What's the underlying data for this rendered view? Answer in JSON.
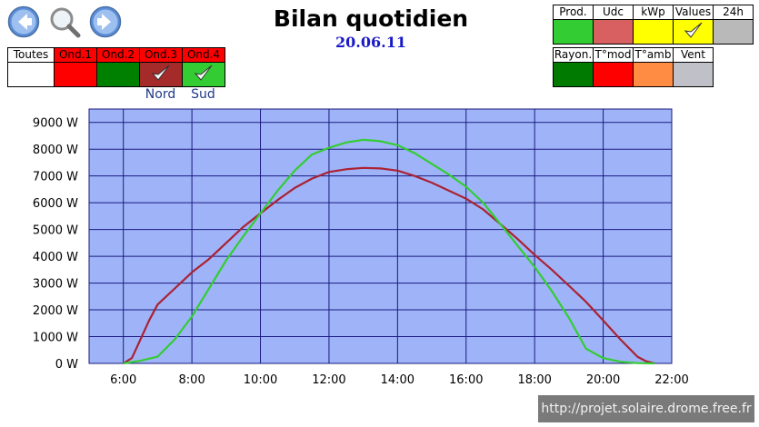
{
  "header": {
    "title": "Bilan quotidien",
    "date": "20.06.11"
  },
  "nav": {
    "icons": [
      "back-arrow-icon",
      "magnifier-icon",
      "forward-arrow-icon"
    ]
  },
  "inverters": {
    "items": [
      {
        "label": "Toutes",
        "color": "#ffffff",
        "text_color": "#000000",
        "checked": false,
        "sub": ""
      },
      {
        "label": "Ond.1",
        "color": "#ff0000",
        "text_color": "#000000",
        "checked": false,
        "sub": ""
      },
      {
        "label": "Ond.2",
        "color": "#008000",
        "text_color": "#000000",
        "checked": false,
        "sub": ""
      },
      {
        "label": "Ond.3",
        "color": "#a52a2a",
        "text_color": "#000000",
        "checked": true,
        "sub": "Nord"
      },
      {
        "label": "Ond.4",
        "color": "#33cc33",
        "text_color": "#000000",
        "checked": true,
        "sub": "Sud"
      }
    ]
  },
  "views": {
    "row1": [
      {
        "label": "Prod.",
        "color": "#33cc33",
        "checked": false
      },
      {
        "label": "Udc",
        "color": "#d96060",
        "checked": false
      },
      {
        "label": "kWp",
        "color": "#ffff00",
        "checked": false
      },
      {
        "label": "Values",
        "color": "#ffff00",
        "checked": true
      },
      {
        "label": "24h",
        "color": "#b9b9b9",
        "checked": false
      }
    ],
    "row2": [
      {
        "label": "Rayon.",
        "color": "#007a00",
        "checked": false
      },
      {
        "label": "T°mod",
        "color": "#ff0000",
        "checked": false
      },
      {
        "label": "T°amb",
        "color": "#ff8c42",
        "checked": false
      },
      {
        "label": "Vent",
        "color": "#c0c0c8",
        "checked": false
      }
    ]
  },
  "chart_data": {
    "type": "line",
    "title": "",
    "xlabel": "",
    "ylabel": "",
    "xlim": [
      5,
      22
    ],
    "ylim": [
      0,
      9500
    ],
    "x_ticks": [
      "6:00",
      "8:00",
      "10:00",
      "12:00",
      "14:00",
      "16:00",
      "18:00",
      "20:00",
      "22:00"
    ],
    "y_ticks": [
      "0 W",
      "1000 W",
      "2000 W",
      "3000 W",
      "4000 W",
      "5000 W",
      "6000 W",
      "7000 W",
      "8000 W",
      "9000 W"
    ],
    "grid": true,
    "plot_bg": "#9fb4f8",
    "series": [
      {
        "name": "Nord",
        "color": "#aa2233",
        "x": [
          6.0,
          6.25,
          6.5,
          6.75,
          7.0,
          7.5,
          8.0,
          8.5,
          9.0,
          9.5,
          10.0,
          10.5,
          11.0,
          11.5,
          12.0,
          12.5,
          13.0,
          13.5,
          14.0,
          14.5,
          15.0,
          15.5,
          16.0,
          16.5,
          17.0,
          17.5,
          18.0,
          18.5,
          19.0,
          19.5,
          20.0,
          20.5,
          21.0,
          21.25,
          21.5
        ],
        "y": [
          0,
          200,
          900,
          1600,
          2200,
          2800,
          3400,
          3900,
          4500,
          5100,
          5600,
          6100,
          6550,
          6900,
          7150,
          7250,
          7300,
          7280,
          7200,
          7000,
          6750,
          6450,
          6150,
          5750,
          5200,
          4650,
          4050,
          3500,
          2900,
          2300,
          1600,
          900,
          250,
          80,
          0
        ]
      },
      {
        "name": "Sud",
        "color": "#33cc33",
        "x": [
          6.0,
          6.5,
          7.0,
          7.5,
          8.0,
          8.5,
          9.0,
          9.5,
          10.0,
          10.5,
          11.0,
          11.5,
          12.0,
          12.5,
          13.0,
          13.5,
          14.0,
          14.5,
          15.0,
          15.5,
          16.0,
          16.5,
          17.0,
          17.5,
          18.0,
          18.5,
          19.0,
          19.5,
          20.0,
          20.5,
          21.0,
          21.5
        ],
        "y": [
          0,
          100,
          250,
          900,
          1750,
          2800,
          3850,
          4750,
          5600,
          6450,
          7200,
          7800,
          8050,
          8250,
          8350,
          8300,
          8150,
          7850,
          7450,
          7050,
          6600,
          6000,
          5200,
          4400,
          3600,
          2700,
          1700,
          550,
          200,
          60,
          10,
          0
        ]
      }
    ]
  },
  "footer": {
    "credit": "http://projet.solaire.drome.free.fr"
  }
}
